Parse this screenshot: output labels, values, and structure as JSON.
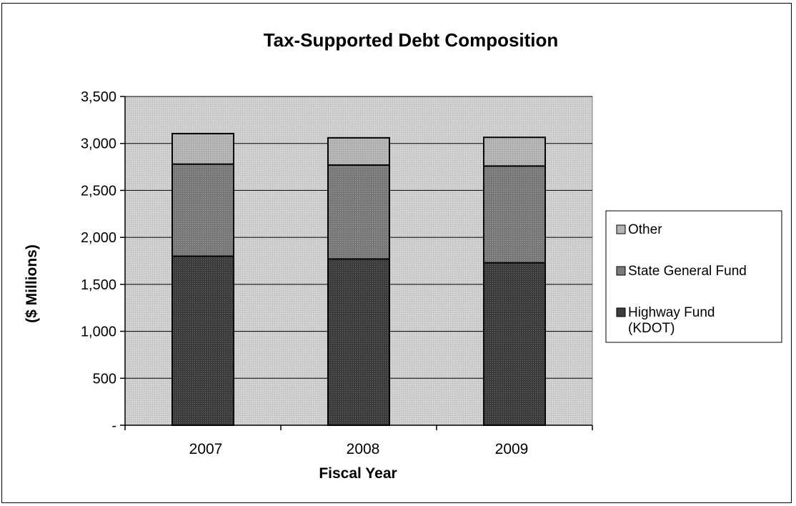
{
  "chart_data": {
    "type": "bar",
    "stacked": true,
    "title": "Tax-Supported Debt Composition",
    "xlabel": "Fiscal Year",
    "ylabel": "($ Millions)",
    "categories": [
      "2007",
      "2008",
      "2009"
    ],
    "ylim": [
      0,
      3500
    ],
    "yticks": [
      0,
      500,
      1000,
      1500,
      2000,
      2500,
      3000,
      3500
    ],
    "ytick_labels": [
      "-",
      "500",
      "1,000",
      "1,500",
      "2,000",
      "2,500",
      "3,000",
      "3,500"
    ],
    "grid": true,
    "legend_position": "right",
    "series": [
      {
        "name": "Highway Fund (KDOT)",
        "name_lines": [
          "Highway Fund",
          "(KDOT)"
        ],
        "values": [
          1800,
          1770,
          1730
        ],
        "color": "#3c3c3c"
      },
      {
        "name": "State General Fund",
        "name_lines": [
          "State General Fund"
        ],
        "values": [
          980,
          1000,
          1030
        ],
        "color": "#7a7a7a"
      },
      {
        "name": "Other",
        "name_lines": [
          "Other"
        ],
        "values": [
          325,
          290,
          305
        ],
        "color": "#b3b3b3"
      }
    ],
    "legend_order": [
      2,
      1,
      0
    ],
    "plot_background": "#cfcfcf"
  }
}
